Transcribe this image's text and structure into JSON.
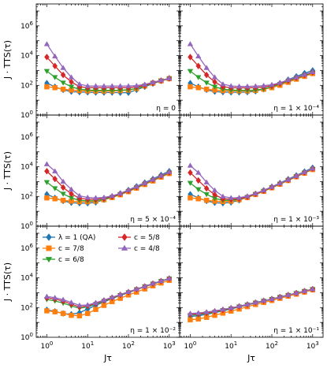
{
  "figure": {
    "ylabel": "J · TTS(τ)",
    "xlabel": "Jτ"
  },
  "legend": [
    {
      "name": "λ = 1 (QA)",
      "color": "#1f77b4",
      "marker": "diamond"
    },
    {
      "name": "c = 7/8",
      "color": "#ff7f0e",
      "marker": "square"
    },
    {
      "name": "c = 6/8",
      "color": "#2ca02c",
      "marker": "triangle-down"
    },
    {
      "name": "c = 5/8",
      "color": "#d62728",
      "marker": "diamond"
    },
    {
      "name": "c = 4/8",
      "color": "#9467bd",
      "marker": "triangle-up"
    }
  ],
  "chart_data": [
    {
      "type": "line",
      "panel": "top-left",
      "annotation": "η = 0",
      "xscale": "log",
      "yscale": "log",
      "xlim": [
        0.55,
        1800
      ],
      "ylim": [
        1,
        30000000
      ],
      "x": [
        1,
        1.58,
        2.51,
        3.98,
        6.31,
        10,
        15.8,
        25.1,
        39.8,
        63.1,
        100,
        158,
        251,
        398,
        631,
        1000
      ],
      "series": [
        {
          "name": "λ = 1 (QA)",
          "values": [
            140,
            80,
            50,
            38,
            35,
            34,
            33,
            33,
            33,
            32,
            32,
            50,
            80,
            130,
            200,
            300
          ]
        },
        {
          "name": "c = 7/8",
          "values": [
            80,
            70,
            55,
            48,
            44,
            42,
            41,
            41,
            42,
            44,
            48,
            60,
            90,
            140,
            200,
            280
          ]
        },
        {
          "name": "c = 6/8",
          "values": [
            900,
            350,
            150,
            80,
            55,
            48,
            46,
            46,
            46,
            47,
            50,
            62,
            92,
            140,
            200,
            280
          ]
        },
        {
          "name": "c = 5/8",
          "values": [
            8000,
            2000,
            500,
            170,
            80,
            70,
            70,
            70,
            70,
            70,
            70,
            80,
            100,
            150,
            210,
            290
          ]
        },
        {
          "name": "c = 4/8",
          "values": [
            60000,
            9000,
            1500,
            350,
            120,
            90,
            90,
            90,
            90,
            90,
            90,
            95,
            115,
            160,
            220,
            300
          ]
        }
      ]
    },
    {
      "type": "line",
      "panel": "top-right",
      "annotation": "η = 1 × 10⁻⁴",
      "xscale": "log",
      "yscale": "log",
      "xlim": [
        0.55,
        1800
      ],
      "ylim": [
        1,
        30000000
      ],
      "x": [
        1,
        1.58,
        2.51,
        3.98,
        6.31,
        10,
        15.8,
        25.1,
        39.8,
        63.1,
        100,
        158,
        251,
        398,
        631,
        1000
      ],
      "series": [
        {
          "name": "λ = 1 (QA)",
          "values": [
            140,
            80,
            50,
            38,
            35,
            34,
            34,
            35,
            40,
            55,
            85,
            140,
            240,
            400,
            650,
            1000
          ]
        },
        {
          "name": "c = 7/8",
          "values": [
            80,
            70,
            55,
            48,
            44,
            42,
            42,
            42,
            45,
            55,
            70,
            100,
            160,
            260,
            400,
            620
          ]
        },
        {
          "name": "c = 6/8",
          "values": [
            900,
            350,
            150,
            80,
            55,
            48,
            46,
            46,
            48,
            58,
            80,
            120,
            190,
            300,
            460,
            700
          ]
        },
        {
          "name": "c = 5/8",
          "values": [
            8000,
            2000,
            500,
            170,
            80,
            70,
            68,
            68,
            70,
            78,
            95,
            135,
            210,
            330,
            500,
            760
          ]
        },
        {
          "name": "c = 4/8",
          "values": [
            60000,
            9000,
            1500,
            350,
            120,
            90,
            85,
            85,
            88,
            95,
            110,
            150,
            230,
            350,
            530,
            800
          ]
        }
      ]
    },
    {
      "type": "line",
      "panel": "middle-left",
      "annotation": "η = 5 × 10⁻⁴",
      "xscale": "log",
      "yscale": "log",
      "xlim": [
        0.55,
        1800
      ],
      "ylim": [
        1,
        30000000
      ],
      "x": [
        1,
        1.58,
        2.51,
        3.98,
        6.31,
        10,
        15.8,
        25.1,
        39.8,
        63.1,
        100,
        158,
        251,
        398,
        631,
        1000
      ],
      "series": [
        {
          "name": "λ = 1 (QA)",
          "values": [
            140,
            80,
            50,
            38,
            35,
            35,
            40,
            60,
            95,
            160,
            270,
            480,
            850,
            1500,
            2800,
            5000
          ]
        },
        {
          "name": "c = 7/8",
          "values": [
            80,
            70,
            55,
            48,
            44,
            44,
            48,
            60,
            85,
            130,
            210,
            360,
            640,
            1100,
            2000,
            3500
          ]
        },
        {
          "name": "c = 6/8",
          "values": [
            900,
            350,
            150,
            80,
            55,
            50,
            52,
            64,
            90,
            140,
            230,
            400,
            700,
            1250,
            2200,
            3900
          ]
        },
        {
          "name": "c = 5/8",
          "values": [
            5000,
            1500,
            400,
            150,
            75,
            65,
            65,
            75,
            100,
            150,
            250,
            430,
            760,
            1350,
            2400,
            4200
          ]
        },
        {
          "name": "c = 4/8",
          "values": [
            15000,
            5000,
            1000,
            300,
            110,
            85,
            80,
            85,
            110,
            160,
            270,
            460,
            800,
            1400,
            2500,
            4500
          ]
        }
      ]
    },
    {
      "type": "line",
      "panel": "middle-right",
      "annotation": "η = 1 × 10⁻³",
      "xscale": "log",
      "yscale": "log",
      "xlim": [
        0.55,
        1800
      ],
      "ylim": [
        1,
        30000000
      ],
      "x": [
        1,
        1.58,
        2.51,
        3.98,
        6.31,
        10,
        15.8,
        25.1,
        39.8,
        63.1,
        100,
        158,
        251,
        398,
        631,
        1000
      ],
      "series": [
        {
          "name": "λ = 1 (QA)",
          "values": [
            140,
            80,
            50,
            38,
            35,
            40,
            55,
            90,
            150,
            260,
            450,
            800,
            1450,
            2600,
            4700,
            8500
          ]
        },
        {
          "name": "c = 7/8",
          "values": [
            80,
            70,
            55,
            48,
            45,
            48,
            60,
            85,
            135,
            220,
            380,
            660,
            1180,
            2100,
            3700,
            6500
          ]
        },
        {
          "name": "c = 6/8",
          "values": [
            800,
            300,
            140,
            75,
            55,
            55,
            65,
            90,
            140,
            230,
            400,
            700,
            1250,
            2200,
            3900,
            7000
          ]
        },
        {
          "name": "c = 5/8",
          "values": [
            4000,
            1200,
            350,
            130,
            70,
            65,
            72,
            95,
            150,
            240,
            420,
            740,
            1300,
            2300,
            4100,
            7400
          ]
        },
        {
          "name": "c = 4/8",
          "values": [
            12000,
            4000,
            900,
            260,
            100,
            80,
            82,
            105,
            160,
            260,
            440,
            770,
            1350,
            2400,
            4300,
            7700
          ]
        }
      ]
    },
    {
      "type": "line",
      "panel": "bottom-left",
      "annotation": "η = 1 × 10⁻²",
      "xscale": "log",
      "yscale": "log",
      "xlim": [
        0.55,
        1800
      ],
      "ylim": [
        1,
        30000000
      ],
      "x": [
        1,
        1.58,
        2.51,
        3.98,
        6.31,
        10,
        15.8,
        25.1,
        39.8,
        63.1,
        100,
        158,
        251,
        398,
        631,
        1000
      ],
      "series": [
        {
          "name": "λ = 1 (QA)",
          "values": [
            70,
            55,
            40,
            35,
            45,
            80,
            140,
            240,
            400,
            650,
            1000,
            1600,
            2500,
            3800,
            5800,
            8500
          ]
        },
        {
          "name": "c = 7/8",
          "values": [
            60,
            52,
            40,
            30,
            28,
            40,
            75,
            140,
            250,
            420,
            700,
            1100,
            1800,
            2900,
            4500,
            6800
          ]
        },
        {
          "name": "c = 6/8",
          "values": [
            350,
            280,
            200,
            130,
            90,
            110,
            170,
            270,
            430,
            680,
            1050,
            1650,
            2600,
            4000,
            6000,
            8800
          ]
        },
        {
          "name": "c = 5/8",
          "values": [
            450,
            380,
            270,
            170,
            110,
            130,
            190,
            300,
            460,
            720,
            1100,
            1700,
            2650,
            4100,
            6100,
            9000
          ]
        },
        {
          "name": "c = 4/8",
          "values": [
            550,
            460,
            340,
            220,
            140,
            150,
            210,
            320,
            490,
            750,
            1150,
            1750,
            2700,
            4200,
            6200,
            9100
          ]
        }
      ]
    },
    {
      "type": "line",
      "panel": "bottom-right",
      "annotation": "η = 1 × 10⁻¹",
      "xscale": "log",
      "yscale": "log",
      "xlim": [
        0.55,
        1800
      ],
      "ylim": [
        1,
        30000000
      ],
      "x": [
        1,
        1.58,
        2.51,
        3.98,
        6.31,
        10,
        15.8,
        25.1,
        39.8,
        63.1,
        100,
        158,
        251,
        398,
        631,
        1000
      ],
      "series": [
        {
          "name": "λ = 1 (QA)",
          "values": [
            25,
            28,
            35,
            45,
            60,
            80,
            110,
            150,
            200,
            270,
            360,
            500,
            680,
            920,
            1250,
            1700
          ]
        },
        {
          "name": "c = 7/8",
          "values": [
            15,
            17,
            22,
            30,
            42,
            58,
            80,
            115,
            160,
            220,
            300,
            420,
            580,
            800,
            1100,
            1550
          ]
        },
        {
          "name": "c = 6/8",
          "values": [
            30,
            33,
            40,
            50,
            65,
            85,
            115,
            155,
            210,
            280,
            370,
            510,
            690,
            930,
            1270,
            1720
          ]
        },
        {
          "name": "c = 5/8",
          "values": [
            35,
            38,
            45,
            55,
            70,
            90,
            120,
            160,
            215,
            285,
            375,
            515,
            695,
            940,
            1280,
            1730
          ]
        },
        {
          "name": "c = 4/8",
          "values": [
            40,
            43,
            50,
            60,
            75,
            95,
            125,
            165,
            220,
            290,
            380,
            520,
            700,
            945,
            1285,
            1735
          ]
        }
      ]
    }
  ],
  "ticks": {
    "x": [
      {
        "value": 1,
        "base": "10",
        "exp": "0"
      },
      {
        "value": 10,
        "base": "10",
        "exp": "1"
      },
      {
        "value": 100,
        "base": "10",
        "exp": "2"
      },
      {
        "value": 1000,
        "base": "10",
        "exp": "3"
      }
    ],
    "y": [
      {
        "value": 1,
        "base": "10",
        "exp": "0"
      },
      {
        "value": 100,
        "base": "10",
        "exp": "2"
      },
      {
        "value": 10000,
        "base": "10",
        "exp": "4"
      },
      {
        "value": 1000000,
        "base": "10",
        "exp": "6"
      }
    ]
  }
}
